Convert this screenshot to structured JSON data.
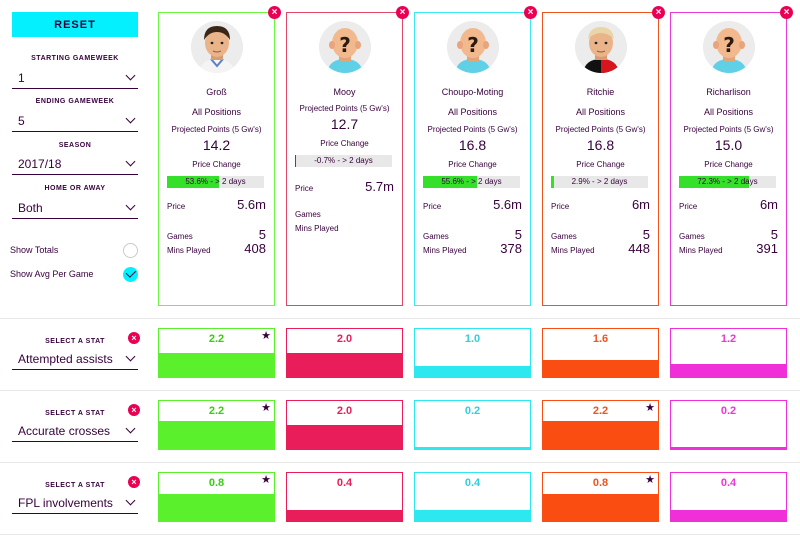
{
  "sidebar": {
    "reset_label": "RESET",
    "starting_gameweek": {
      "label": "STARTING GAMEWEEK",
      "value": "1"
    },
    "ending_gameweek": {
      "label": "ENDING GAMEWEEK",
      "value": "5"
    },
    "season": {
      "label": "SEASON",
      "value": "2017/18"
    },
    "home_away": {
      "label": "HOME OR AWAY",
      "value": "Both"
    },
    "show_totals": {
      "label": "Show Totals",
      "checked": false
    },
    "show_avg": {
      "label": "Show Avg Per Game",
      "checked": true
    }
  },
  "close_glyph": "×",
  "players": [
    {
      "name": "Groß",
      "position": "All Positions",
      "color": "#6cf542",
      "proj_label": "Projected Points (5 Gw's)",
      "proj_value": "14.2",
      "pc_label": "Price Change",
      "pc_text": "53.6% - > 2 days",
      "pc_pct": 53.6,
      "pc_color": "#35e02a",
      "price_label": "Price",
      "price": "5.6m",
      "games_label": "Games",
      "games": "5",
      "mins_label": "Mins Played",
      "mins": "408",
      "avatar": "real-white-shirt"
    },
    {
      "name": "Mooy",
      "position": "",
      "color": "#e4466a",
      "proj_label": "Projected Points (5 Gw's)",
      "proj_value": "12.7",
      "pc_label": "Price Change",
      "pc_text": "-0.7% - > 2 days",
      "pc_pct": 0.7,
      "pc_color": "#e90052",
      "price_label": "Price",
      "price": "5.7m",
      "games_label": "Games",
      "games": "",
      "mins_label": "Mins Played",
      "mins": "",
      "avatar": "placeholder"
    },
    {
      "name": "Choupo-Moting",
      "position": "All Positions",
      "color": "#3de9f1",
      "proj_label": "Projected Points (5 Gw's)",
      "proj_value": "16.8",
      "pc_label": "Price Change",
      "pc_text": "55.6% - > 2 days",
      "pc_pct": 55.6,
      "pc_color": "#35e02a",
      "price_label": "Price",
      "price": "5.6m",
      "games_label": "Games",
      "games": "5",
      "mins_label": "Mins Played",
      "mins": "378",
      "avatar": "placeholder"
    },
    {
      "name": "Ritchie",
      "position": "All Positions",
      "color": "#f0541e",
      "proj_label": "Projected Points (5 Gw's)",
      "proj_value": "16.8",
      "pc_label": "Price Change",
      "pc_text": "2.9% - > 2 days",
      "pc_pct": 2.9,
      "pc_color": "#35e02a",
      "price_label": "Price",
      "price": "6m",
      "games_label": "Games",
      "games": "5",
      "mins_label": "Mins Played",
      "mins": "448",
      "avatar": "real-red-black-shirt"
    },
    {
      "name": "Richarlison",
      "position": "All Positions",
      "color": "#e93ad8",
      "proj_label": "Projected Points (5 Gw's)",
      "proj_value": "15.0",
      "pc_label": "Price Change",
      "pc_text": "72.3% - > 2 days",
      "pc_pct": 72.3,
      "pc_color": "#35e02a",
      "price_label": "Price",
      "price": "6m",
      "games_label": "Games",
      "games": "5",
      "mins_label": "Mins Played",
      "mins": "391",
      "avatar": "placeholder"
    }
  ],
  "stats": [
    {
      "label": "SELECT A STAT",
      "selected": "Attempted assists",
      "values": [
        "2.2",
        "2.0",
        "1.0",
        "1.6",
        "1.2"
      ],
      "fill": [
        0.5,
        0.5,
        0.23,
        0.36,
        0.27
      ],
      "star": [
        true,
        false,
        false,
        false,
        false
      ]
    },
    {
      "label": "SELECT A STAT",
      "selected": "Accurate crosses",
      "values": [
        "2.2",
        "2.0",
        "0.2",
        "2.2",
        "0.2"
      ],
      "fill": [
        0.58,
        0.5,
        0.04,
        0.58,
        0.04
      ],
      "star": [
        true,
        false,
        false,
        true,
        false
      ]
    },
    {
      "label": "SELECT A STAT",
      "selected": "FPL involvements",
      "values": [
        "0.8",
        "0.4",
        "0.4",
        "0.8",
        "0.4"
      ],
      "fill": [
        0.56,
        0.22,
        0.22,
        0.56,
        0.22
      ],
      "star": [
        true,
        false,
        false,
        true,
        false
      ]
    }
  ],
  "stat_colors": [
    "#5af02c",
    "#e91d5a",
    "#2ee8f0",
    "#fa4d12",
    "#ef2fd8"
  ],
  "stat_text_colors": [
    "#3acc12",
    "#e91d5a",
    "#2ed0dc",
    "#f0541e",
    "#e93ad8"
  ],
  "star_glyph": "★"
}
